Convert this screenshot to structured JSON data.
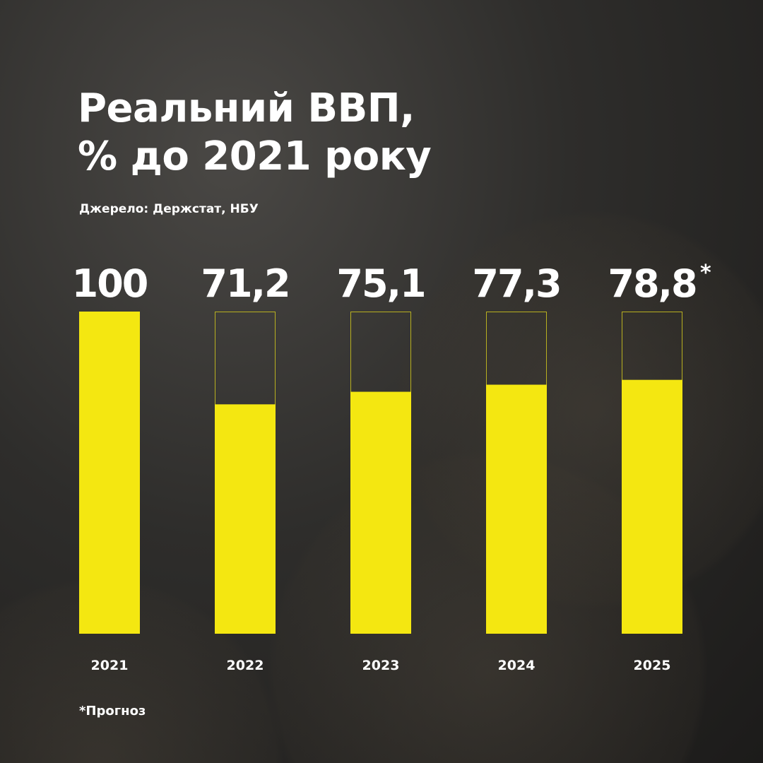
{
  "title_line1": "Реальний ВВП,",
  "title_line2": "% до 2021 року",
  "source": "Джерело: Держстат, НБУ",
  "footnote": "*Прогноз",
  "colors": {
    "bar_fill": "#f4e711",
    "bar_outline": "#b8b020",
    "text": "#ffffff"
  },
  "chart_data": {
    "type": "bar",
    "title": "Реальний ВВП, % до 2021 року",
    "categories": [
      "2021",
      "2022",
      "2023",
      "2024",
      "2025"
    ],
    "values": [
      100,
      71.2,
      75.1,
      77.3,
      78.8
    ],
    "value_labels": [
      "100",
      "71,2",
      "75,1",
      "77,3",
      "78,8"
    ],
    "forecast_marker": [
      "",
      "",
      "",
      "",
      "*"
    ],
    "ylim": [
      0,
      100
    ],
    "grid": false,
    "legend": "none"
  }
}
